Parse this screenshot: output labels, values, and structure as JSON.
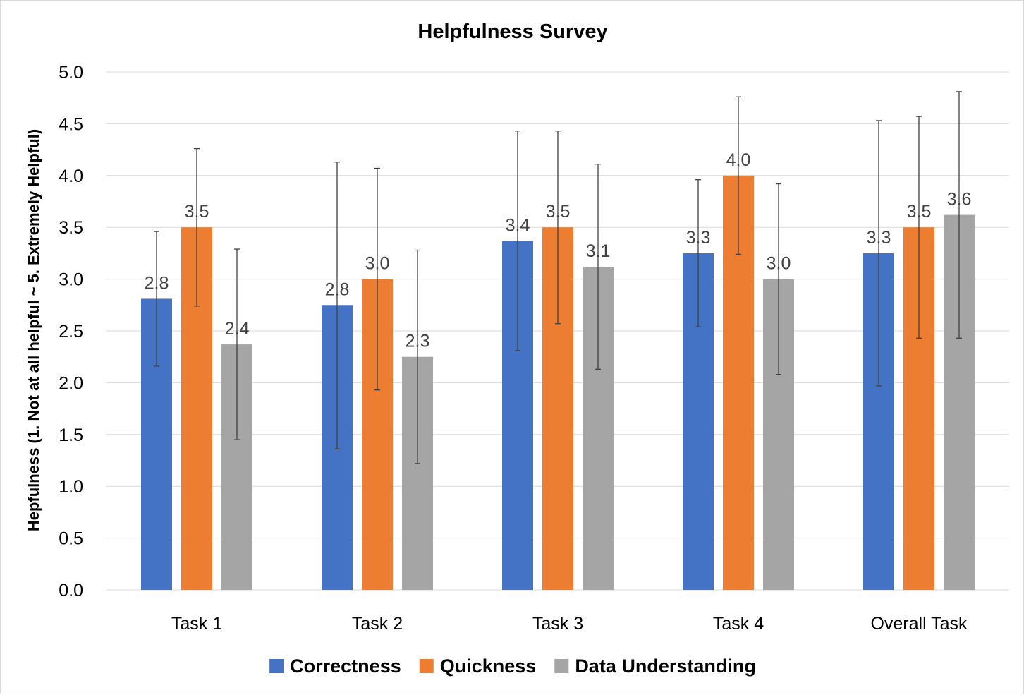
{
  "chart_data": {
    "type": "bar",
    "title": "Helpfulness Survey",
    "xlabel": "",
    "ylabel": "Hepfulness (1. Not at all helpful ~ 5. Extremely Helpful)",
    "ylim": [
      0,
      5
    ],
    "ytick_step": 0.5,
    "yticks": [
      "0.0",
      "0.5",
      "1.0",
      "1.5",
      "2.0",
      "2.5",
      "3.0",
      "3.5",
      "4.0",
      "4.5",
      "5.0"
    ],
    "grid": true,
    "legend_position": "bottom",
    "categories": [
      "Task 1",
      "Task 2",
      "Task 3",
      "Task 4",
      "Overall Task"
    ],
    "series": [
      {
        "name": "Correctness",
        "color": "#4472C4",
        "values": [
          2.81,
          2.75,
          3.37,
          3.25,
          3.25
        ],
        "labels": [
          "2.8",
          "2.8",
          "3.4",
          "3.3",
          "3.3"
        ],
        "err_low": [
          2.16,
          1.36,
          2.31,
          2.54,
          1.97
        ],
        "err_high": [
          3.46,
          4.13,
          4.43,
          3.96,
          4.53
        ]
      },
      {
        "name": "Quickness",
        "color": "#ED7D31",
        "values": [
          3.5,
          3.0,
          3.5,
          4.0,
          3.5
        ],
        "labels": [
          "3.5",
          "3.0",
          "3.5",
          "4.0",
          "3.5"
        ],
        "err_low": [
          2.74,
          1.93,
          2.57,
          3.24,
          2.43
        ],
        "err_high": [
          4.26,
          4.07,
          4.43,
          4.76,
          4.57
        ]
      },
      {
        "name": "Data Understanding",
        "color": "#A5A5A5",
        "values": [
          2.37,
          2.25,
          3.12,
          3.0,
          3.62
        ],
        "labels": [
          "2.4",
          "2.3",
          "3.1",
          "3.0",
          "3.6"
        ],
        "err_low": [
          1.45,
          1.22,
          2.13,
          2.08,
          2.43
        ],
        "err_high": [
          3.29,
          3.28,
          4.11,
          3.92,
          4.81
        ]
      }
    ]
  }
}
